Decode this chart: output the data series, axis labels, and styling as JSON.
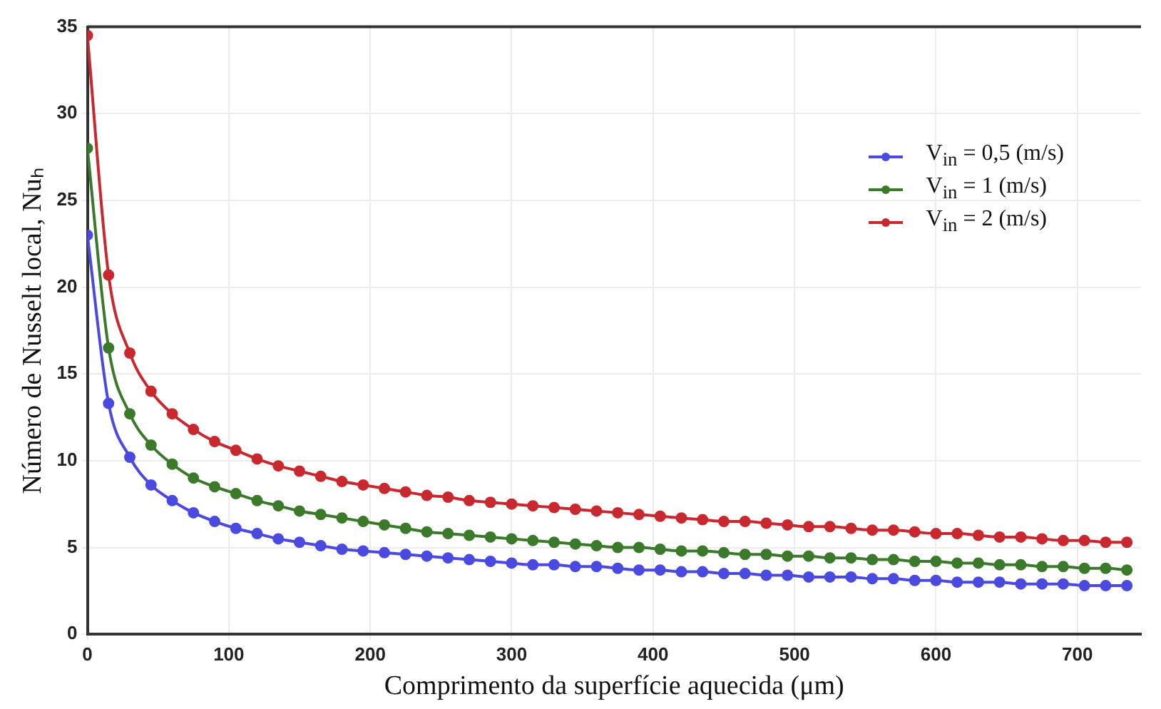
{
  "chart_data": {
    "type": "line",
    "xlabel": "Comprimento da superfície aquecida (μm)",
    "ylabel": "Número de Nusselt local, Nuₕ",
    "x": [
      0,
      15,
      30,
      45,
      60,
      75,
      90,
      105,
      120,
      135,
      150,
      165,
      180,
      195,
      210,
      225,
      240,
      255,
      270,
      285,
      300,
      315,
      330,
      345,
      360,
      375,
      390,
      405,
      420,
      435,
      450,
      465,
      480,
      495,
      510,
      525,
      540,
      555,
      570,
      585,
      600,
      615,
      630,
      645,
      660,
      675,
      690,
      705,
      720,
      735
    ],
    "series": [
      {
        "name": "V$_{in}$ = 0,5 (m/s)",
        "color": "#4a4ae0",
        "values": [
          23.0,
          13.3,
          10.2,
          8.6,
          7.7,
          7.0,
          6.5,
          6.1,
          5.8,
          5.5,
          5.3,
          5.1,
          4.9,
          4.8,
          4.7,
          4.6,
          4.5,
          4.4,
          4.3,
          4.2,
          4.1,
          4.0,
          4.0,
          3.9,
          3.9,
          3.8,
          3.7,
          3.7,
          3.6,
          3.6,
          3.5,
          3.5,
          3.4,
          3.4,
          3.3,
          3.3,
          3.3,
          3.2,
          3.2,
          3.1,
          3.1,
          3.0,
          3.0,
          3.0,
          2.9,
          2.9,
          2.9,
          2.8,
          2.8,
          2.8
        ]
      },
      {
        "name": "V$_{in}$ = 1 (m/s)",
        "color": "#3a7a2a",
        "values": [
          28.0,
          16.5,
          12.7,
          10.9,
          9.8,
          9.0,
          8.5,
          8.1,
          7.7,
          7.4,
          7.1,
          6.9,
          6.7,
          6.5,
          6.3,
          6.1,
          5.9,
          5.8,
          5.7,
          5.6,
          5.5,
          5.4,
          5.3,
          5.2,
          5.1,
          5.0,
          5.0,
          4.9,
          4.8,
          4.8,
          4.7,
          4.6,
          4.6,
          4.5,
          4.5,
          4.4,
          4.4,
          4.3,
          4.3,
          4.2,
          4.2,
          4.1,
          4.1,
          4.0,
          4.0,
          3.9,
          3.9,
          3.8,
          3.8,
          3.7
        ]
      },
      {
        "name": "V$_{in}$ = 2 (m/s)",
        "color": "#c8282e",
        "values": [
          34.5,
          20.7,
          16.2,
          14.0,
          12.7,
          11.8,
          11.1,
          10.6,
          10.1,
          9.7,
          9.4,
          9.1,
          8.8,
          8.6,
          8.4,
          8.2,
          8.0,
          7.9,
          7.7,
          7.6,
          7.5,
          7.4,
          7.3,
          7.2,
          7.1,
          7.0,
          6.9,
          6.8,
          6.7,
          6.6,
          6.5,
          6.5,
          6.4,
          6.3,
          6.2,
          6.2,
          6.1,
          6.0,
          6.0,
          5.9,
          5.8,
          5.8,
          5.7,
          5.6,
          5.6,
          5.5,
          5.4,
          5.4,
          5.3,
          5.3
        ]
      }
    ],
    "xlim": [
      0,
      745
    ],
    "xticks": [
      0,
      100,
      200,
      300,
      400,
      500,
      600,
      700
    ],
    "ylim": [
      0,
      35
    ],
    "yticks": [
      0,
      5,
      10,
      15,
      20,
      25,
      30,
      35
    ],
    "grid": true,
    "legend": "top right",
    "marker": "circle",
    "line_style": "solid"
  }
}
